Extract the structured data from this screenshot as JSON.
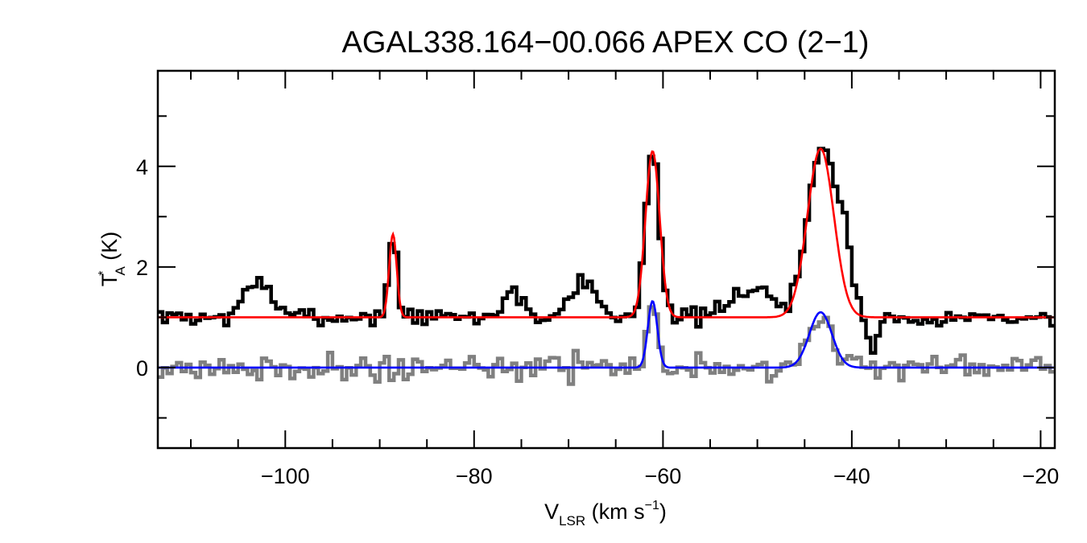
{
  "chart_data": {
    "type": "line",
    "title": "AGAL338.164−00.066  APEX CO (2−1)",
    "xlabel": {
      "main": "V",
      "sub": "LSR",
      "unit_pre": " (km s",
      "sup": "−1",
      "unit_post": ")"
    },
    "ylabel": {
      "main": "T",
      "sup": "*",
      "sub": "A",
      "unit": " (K)"
    },
    "xlim": [
      -113.5,
      -18.5
    ],
    "ylim": [
      -1.6,
      5.9
    ],
    "x_ticks": [
      {
        "value": -100,
        "label": "−100"
      },
      {
        "value": -80,
        "label": "−80"
      },
      {
        "value": -60,
        "label": "−60"
      },
      {
        "value": -40,
        "label": "−40"
      },
      {
        "value": -20,
        "label": "−20"
      }
    ],
    "x_minor_step": 5,
    "y_ticks": [
      {
        "value": 0,
        "label": "0"
      },
      {
        "value": 2,
        "label": "2"
      },
      {
        "value": 4,
        "label": "4"
      }
    ],
    "y_minor_step": 1,
    "grid": false,
    "legend": "none",
    "series": [
      {
        "style": "step",
        "color": "#000000",
        "data": {
          "x0": -113.5,
          "dx": 0.5,
          "baseline": 1.0,
          "noise": 0.09,
          "seed": 7,
          "components": [
            {
              "center": -102.8,
              "height": 0.75,
              "sigma": 1.3
            },
            {
              "center": -88.6,
              "height": 1.7,
              "sigma": 0.45
            },
            {
              "center": -76.0,
              "height": 0.55,
              "sigma": 0.9
            },
            {
              "center": -68.5,
              "height": 0.75,
              "sigma": 1.3
            },
            {
              "center": -61.1,
              "height": 3.35,
              "sigma": 0.75
            },
            {
              "center": -50.5,
              "height": 0.6,
              "sigma": 2.0
            },
            {
              "center": -43.2,
              "height": 3.3,
              "sigma": 1.5
            },
            {
              "center": -40.8,
              "height": 1.0,
              "sigma": 1.0
            },
            {
              "center": -37.8,
              "height": -0.85,
              "sigma": 0.4
            }
          ]
        }
      },
      {
        "style": "line",
        "color": "#ff0000",
        "data": {
          "baseline": 1.0,
          "components": [
            {
              "center": -88.6,
              "height": 1.65,
              "sigma": 0.4
            },
            {
              "center": -61.1,
              "height": 3.3,
              "sigma": 0.75
            },
            {
              "center": -43.3,
              "height": 3.35,
              "sigma": 1.4
            }
          ]
        }
      },
      {
        "style": "step",
        "color": "#808080",
        "data": {
          "x0": -113.5,
          "dx": 0.5,
          "baseline": 0.0,
          "noise": 0.12,
          "seed": 21,
          "components": [
            {
              "center": -61.1,
              "height": 1.3,
              "sigma": 0.55
            },
            {
              "center": -43.3,
              "height": 1.05,
              "sigma": 1.3
            }
          ]
        }
      },
      {
        "style": "line",
        "color": "#0000ff",
        "data": {
          "baseline": 0.0,
          "components": [
            {
              "center": -61.1,
              "height": 1.32,
              "sigma": 0.5
            },
            {
              "center": -43.3,
              "height": 1.1,
              "sigma": 1.2
            }
          ]
        }
      }
    ]
  }
}
